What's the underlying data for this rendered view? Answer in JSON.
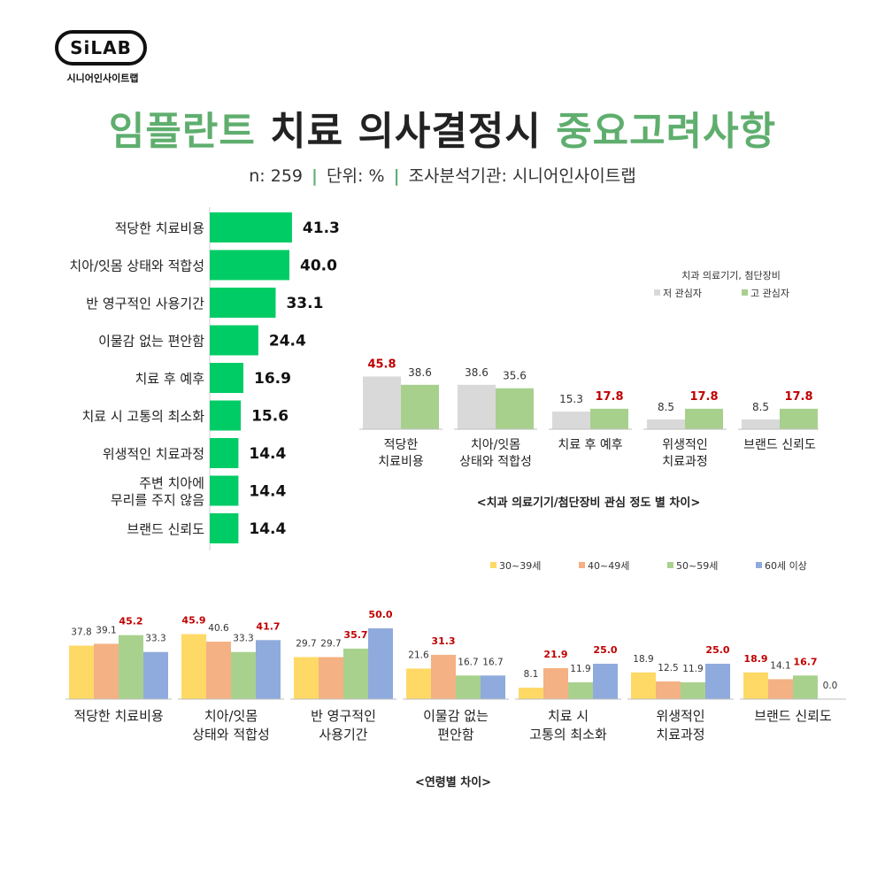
{
  "logo": {
    "text": "SiLAB",
    "subtitle": "시니어인사이트랩"
  },
  "title": {
    "part1": "임플란트",
    "part2": "치료 의사결정시",
    "part3": "중요고려사항"
  },
  "subtitle": {
    "n": "n: 259",
    "unit": "단위: %",
    "org": "조사분석기관: 시니어인사이트랩",
    "separator": "|"
  },
  "colors": {
    "main_bar": "#00cc66",
    "low_interest": "#d9d9d9",
    "high_interest": "#a8d08d",
    "age_30s": "#ffd966",
    "age_40s": "#f4b183",
    "age_50s": "#a9d18e",
    "age_60s": "#8faadc",
    "highlight": "#c00000",
    "title_green": "#5fae6e"
  },
  "chart_data": [
    {
      "type": "bar",
      "orientation": "horizontal",
      "categories": [
        "적당한 치료비용",
        "치아/잇몸 상태와 적합성",
        "반 영구적인 사용기간",
        "이물감 없는 편안함",
        "치료 후 예후",
        "치료 시 고통의 최소화",
        "위생적인 치료과정",
        "주변 치아에\n무리를 주지 않음",
        "브랜드 신뢰도"
      ],
      "values": [
        41.3,
        40.0,
        33.1,
        24.4,
        16.9,
        15.6,
        14.4,
        14.4,
        14.4
      ],
      "value_labels": [
        "41.3",
        "40.0",
        "33.1",
        "24.4",
        "16.9",
        "15.6",
        "14.4",
        "14.4",
        "14.4"
      ]
    },
    {
      "type": "bar",
      "title": "<치과 의료기기/첨단장비 관심 정도 별 차이>",
      "legend_title": "치과 의료기기, 첨단장비",
      "legend_position": "top-right",
      "categories": [
        "적당한\n치료비용",
        "치아/잇몸\n상태와 적합성",
        "치료 후 예후",
        "위생적인\n치료과정",
        "브랜드 신뢰도"
      ],
      "series": [
        {
          "name": "저 관심자",
          "values": [
            45.8,
            38.6,
            15.3,
            8.5,
            8.5
          ],
          "labels": [
            "45.8",
            "38.6",
            "15.3",
            "8.5",
            "8.5"
          ],
          "highlight": [
            true,
            false,
            false,
            false,
            false
          ]
        },
        {
          "name": "고 관심자",
          "values": [
            38.6,
            35.6,
            17.8,
            17.8,
            17.8
          ],
          "labels": [
            "38.6",
            "35.6",
            "17.8",
            "17.8",
            "17.8"
          ],
          "highlight": [
            false,
            false,
            true,
            true,
            true
          ]
        }
      ]
    },
    {
      "type": "bar",
      "title": "<연령별 차이>",
      "legend_position": "top-right",
      "categories": [
        "적당한 치료비용",
        "치아/잇몸\n상태와 적합성",
        "반 영구적인\n사용기간",
        "이물감 없는\n편안함",
        "치료 시\n고통의 최소화",
        "위생적인\n치료과정",
        "브랜드 신뢰도"
      ],
      "series": [
        {
          "name": "30~39세",
          "values": [
            37.8,
            45.9,
            29.7,
            21.6,
            8.1,
            18.9,
            18.9
          ],
          "labels": [
            "37.8",
            "45.9",
            "29.7",
            "21.6",
            "8.1",
            "18.9",
            "18.9"
          ],
          "highlight": [
            false,
            true,
            false,
            false,
            false,
            false,
            true
          ]
        },
        {
          "name": "40~49세",
          "values": [
            39.1,
            40.6,
            29.7,
            31.3,
            21.9,
            12.5,
            14.1
          ],
          "labels": [
            "39.1",
            "40.6",
            "29.7",
            "31.3",
            "21.9",
            "12.5",
            "14.1"
          ],
          "highlight": [
            false,
            false,
            false,
            true,
            true,
            false,
            false
          ]
        },
        {
          "name": "50~59세",
          "values": [
            45.2,
            33.3,
            35.7,
            16.7,
            11.9,
            11.9,
            16.7
          ],
          "labels": [
            "45.2",
            "33.3",
            "35.7",
            "16.7",
            "11.9",
            "11.9",
            "16.7"
          ],
          "highlight": [
            true,
            false,
            true,
            false,
            false,
            false,
            true
          ]
        },
        {
          "name": "60세 이상",
          "values": [
            33.3,
            41.7,
            50.0,
            16.7,
            25.0,
            25.0,
            0.0
          ],
          "labels": [
            "33.3",
            "41.7",
            "50.0",
            "16.7",
            "25.0",
            "25.0",
            "0.0"
          ],
          "highlight": [
            false,
            true,
            true,
            false,
            true,
            true,
            false
          ]
        }
      ]
    }
  ]
}
